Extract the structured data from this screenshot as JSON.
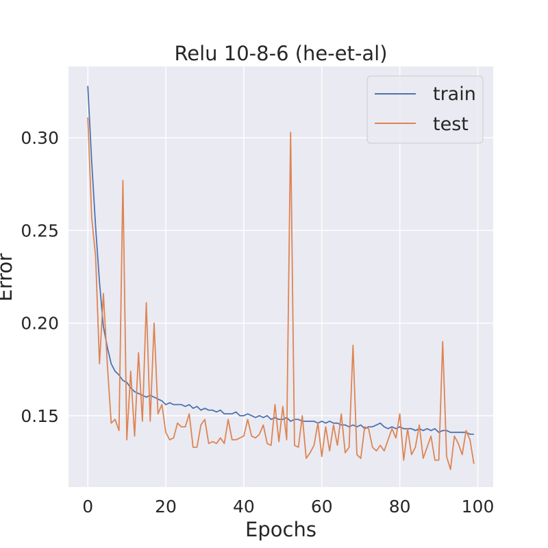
{
  "chart_data": {
    "type": "line",
    "title": "Relu 10-8-6 (he-et-al)",
    "xlabel": "Epochs",
    "ylabel": "Error",
    "xlim": [
      -4.95,
      103.95
    ],
    "ylim": [
      0.1115,
      0.3385
    ],
    "xticks": [
      0,
      20,
      40,
      60,
      80,
      100
    ],
    "yticks": [
      0.15,
      0.2,
      0.25,
      0.3
    ],
    "xtick_labels": [
      "0",
      "20",
      "40",
      "60",
      "80",
      "100"
    ],
    "ytick_labels": [
      "0.15",
      "0.20",
      "0.25",
      "0.30"
    ],
    "grid": true,
    "legend_position": "top-right",
    "background": "#eaeaf2",
    "series": [
      {
        "name": "train",
        "color": "#4c72b0",
        "values": [
          0.328,
          0.287,
          0.252,
          0.222,
          0.198,
          0.187,
          0.178,
          0.174,
          0.172,
          0.169,
          0.168,
          0.165,
          0.163,
          0.162,
          0.161,
          0.16,
          0.161,
          0.16,
          0.159,
          0.158,
          0.156,
          0.157,
          0.156,
          0.156,
          0.156,
          0.155,
          0.156,
          0.154,
          0.155,
          0.153,
          0.154,
          0.153,
          0.153,
          0.152,
          0.153,
          0.151,
          0.151,
          0.151,
          0.152,
          0.15,
          0.15,
          0.151,
          0.15,
          0.149,
          0.15,
          0.149,
          0.15,
          0.148,
          0.149,
          0.148,
          0.148,
          0.149,
          0.147,
          0.148,
          0.148,
          0.147,
          0.147,
          0.147,
          0.147,
          0.146,
          0.147,
          0.146,
          0.147,
          0.146,
          0.146,
          0.145,
          0.145,
          0.144,
          0.145,
          0.144,
          0.145,
          0.143,
          0.144,
          0.144,
          0.145,
          0.146,
          0.144,
          0.143,
          0.144,
          0.143,
          0.144,
          0.143,
          0.143,
          0.143,
          0.142,
          0.143,
          0.142,
          0.143,
          0.142,
          0.143,
          0.141,
          0.142,
          0.142,
          0.141,
          0.141,
          0.141,
          0.141,
          0.141,
          0.14,
          0.14
        ]
      },
      {
        "name": "test",
        "color": "#dd8452",
        "values": [
          0.311,
          0.257,
          0.236,
          0.178,
          0.216,
          0.178,
          0.146,
          0.148,
          0.142,
          0.277,
          0.137,
          0.174,
          0.139,
          0.184,
          0.147,
          0.211,
          0.147,
          0.2,
          0.151,
          0.156,
          0.141,
          0.137,
          0.138,
          0.146,
          0.144,
          0.144,
          0.151,
          0.133,
          0.133,
          0.145,
          0.148,
          0.135,
          0.136,
          0.135,
          0.138,
          0.135,
          0.148,
          0.137,
          0.137,
          0.138,
          0.139,
          0.148,
          0.139,
          0.138,
          0.14,
          0.145,
          0.135,
          0.134,
          0.156,
          0.136,
          0.155,
          0.137,
          0.303,
          0.134,
          0.133,
          0.15,
          0.127,
          0.13,
          0.134,
          0.146,
          0.128,
          0.144,
          0.131,
          0.145,
          0.134,
          0.151,
          0.13,
          0.133,
          0.188,
          0.129,
          0.127,
          0.144,
          0.143,
          0.133,
          0.131,
          0.134,
          0.131,
          0.137,
          0.143,
          0.138,
          0.151,
          0.126,
          0.143,
          0.129,
          0.133,
          0.145,
          0.127,
          0.133,
          0.139,
          0.126,
          0.126,
          0.19,
          0.128,
          0.121,
          0.139,
          0.135,
          0.129,
          0.142,
          0.137,
          0.124
        ]
      }
    ]
  }
}
